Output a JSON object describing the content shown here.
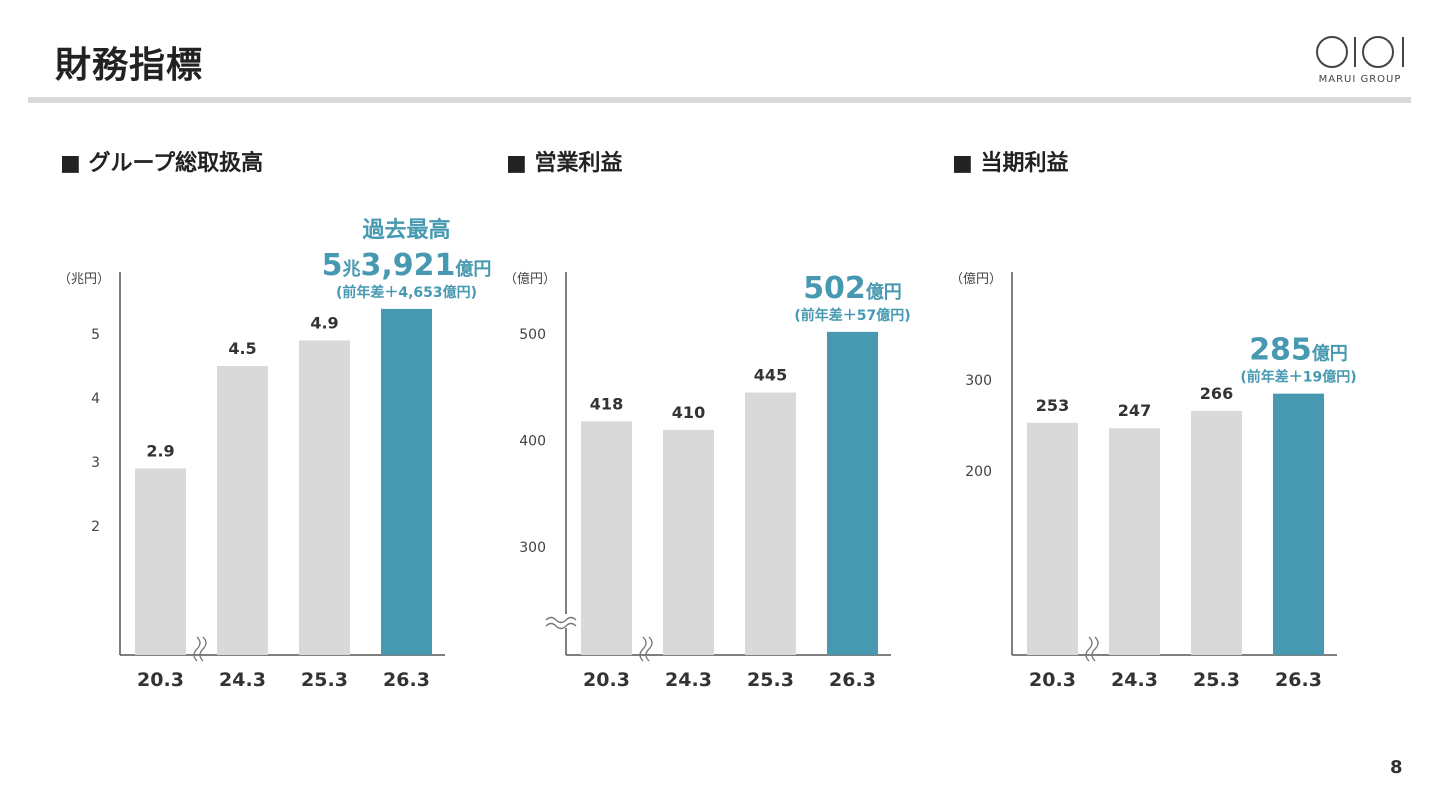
{
  "page": {
    "title": "財務指標",
    "number": "8"
  },
  "logo": {
    "text": "MARUI GROUP"
  },
  "colors": {
    "bar": "#d9d9d9",
    "highlight": "#4699b1",
    "axis": "#555555"
  },
  "chart_data": [
    {
      "type": "bar",
      "title": "■ グループ総取扱高",
      "unit_label": "（兆円）",
      "categories": [
        "20.3",
        "24.3",
        "25.3",
        "26.3"
      ],
      "values": [
        2.9,
        4.5,
        4.9,
        5.3921
      ],
      "data_labels": [
        "2.9",
        "4.5",
        "4.9",
        ""
      ],
      "yticks": [
        2,
        3,
        4,
        5
      ],
      "ylim": [
        1,
        6
      ],
      "axis_break": "x",
      "highlight_index": 3,
      "callout": {
        "line1": "過去最高",
        "line2_big": "5",
        "line2_small": "兆",
        "line2_big2": "3,921",
        "line2_unit": "億円",
        "line3": "(前年差＋4,653億円)"
      }
    },
    {
      "type": "bar",
      "title": "■ 営業利益",
      "unit_label": "（億円）",
      "categories": [
        "20.3",
        "24.3",
        "25.3",
        "26.3"
      ],
      "values": [
        418,
        410,
        445,
        502
      ],
      "data_labels": [
        "418",
        "410",
        "445",
        ""
      ],
      "yticks": [
        300,
        400,
        500
      ],
      "ylim": [
        200,
        560
      ],
      "axis_break": "xy",
      "highlight_index": 3,
      "callout": {
        "line1": "",
        "line2_big": "502",
        "line2_small": "",
        "line2_big2": "",
        "line2_unit": "億円",
        "line3": "(前年差＋57億円)"
      }
    },
    {
      "type": "bar",
      "title": "■ 当期利益",
      "unit_label": "（億円）",
      "categories": [
        "20.3",
        "24.3",
        "25.3",
        "26.3"
      ],
      "values": [
        253,
        247,
        266,
        285
      ],
      "data_labels": [
        "253",
        "247",
        "266",
        ""
      ],
      "yticks": [
        200,
        300
      ],
      "ylim": [
        0,
        400
      ],
      "axis_break": "x",
      "highlight_index": 3,
      "callout": {
        "line1": "",
        "line2_big": "285",
        "line2_small": "",
        "line2_big2": "",
        "line2_unit": "億円",
        "line3": "(前年差＋19億円)"
      }
    }
  ]
}
